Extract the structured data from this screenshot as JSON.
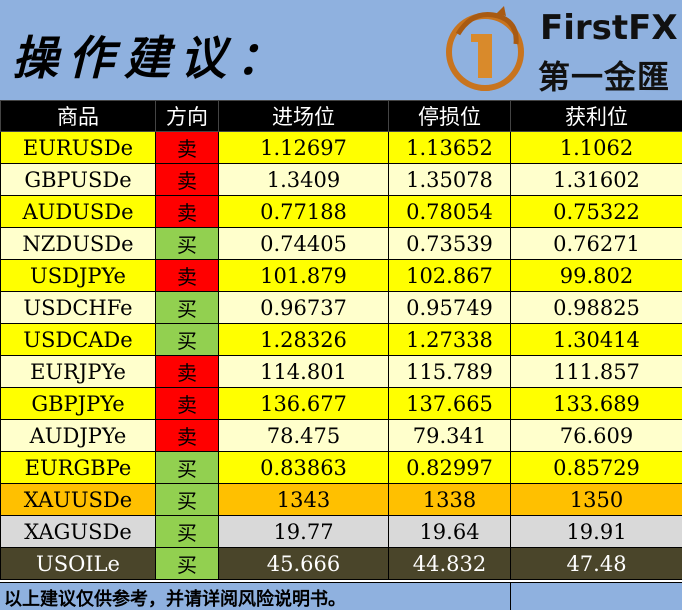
{
  "header": {
    "title": "操作建议：",
    "brand_name": "FirstFX",
    "brand_cn": "第一金匯",
    "background": "#8fb1df"
  },
  "table": {
    "columns": [
      "商品",
      "方向",
      "进场位",
      "停损位",
      "获利位"
    ],
    "colors": {
      "yellow": "#ffff00",
      "light": "#ffffcc",
      "orange": "#ffc000",
      "gray": "#d9d9d9",
      "olive": "#4a452a",
      "sell": "#ff0000",
      "buy": "#92d050"
    },
    "rows": [
      {
        "symbol": "EURUSDe",
        "direction": "卖",
        "entry": "1.12697",
        "stop": "1.13652",
        "target": "1.1062",
        "theme": "yellow"
      },
      {
        "symbol": "GBPUSDe",
        "direction": "卖",
        "entry": "1.3409",
        "stop": "1.35078",
        "target": "1.31602",
        "theme": "light"
      },
      {
        "symbol": "AUDUSDe",
        "direction": "卖",
        "entry": "0.77188",
        "stop": "0.78054",
        "target": "0.75322",
        "theme": "yellow"
      },
      {
        "symbol": "NZDUSDe",
        "direction": "买",
        "entry": "0.74405",
        "stop": "0.73539",
        "target": "0.76271",
        "theme": "light"
      },
      {
        "symbol": "USDJPYe",
        "direction": "卖",
        "entry": "101.879",
        "stop": "102.867",
        "target": "99.802",
        "theme": "yellow"
      },
      {
        "symbol": "USDCHFe",
        "direction": "买",
        "entry": "0.96737",
        "stop": "0.95749",
        "target": "0.98825",
        "theme": "light"
      },
      {
        "symbol": "USDCADe",
        "direction": "买",
        "entry": "1.28326",
        "stop": "1.27338",
        "target": "1.30414",
        "theme": "yellow"
      },
      {
        "symbol": "EURJPYe",
        "direction": "卖",
        "entry": "114.801",
        "stop": "115.789",
        "target": "111.857",
        "theme": "light"
      },
      {
        "symbol": "GBPJPYe",
        "direction": "卖",
        "entry": "136.677",
        "stop": "137.665",
        "target": "133.689",
        "theme": "yellow"
      },
      {
        "symbol": "AUDJPYe",
        "direction": "卖",
        "entry": "78.475",
        "stop": "79.341",
        "target": "76.609",
        "theme": "light"
      },
      {
        "symbol": "EURGBPe",
        "direction": "买",
        "entry": "0.83863",
        "stop": "0.82997",
        "target": "0.85729",
        "theme": "yellow"
      },
      {
        "symbol": "XAUUSDe",
        "direction": "买",
        "entry": "1343",
        "stop": "1338",
        "target": "1350",
        "theme": "orange"
      },
      {
        "symbol": "XAGUSDe",
        "direction": "买",
        "entry": "19.77",
        "stop": "19.64",
        "target": "19.91",
        "theme": "gray"
      },
      {
        "symbol": "USOILe",
        "direction": "买",
        "entry": "45.666",
        "stop": "44.832",
        "target": "47.48",
        "theme": "olive"
      }
    ]
  },
  "footer": {
    "disclaimer": "以上建议仅供参考，并请详阅风险说明书。"
  }
}
